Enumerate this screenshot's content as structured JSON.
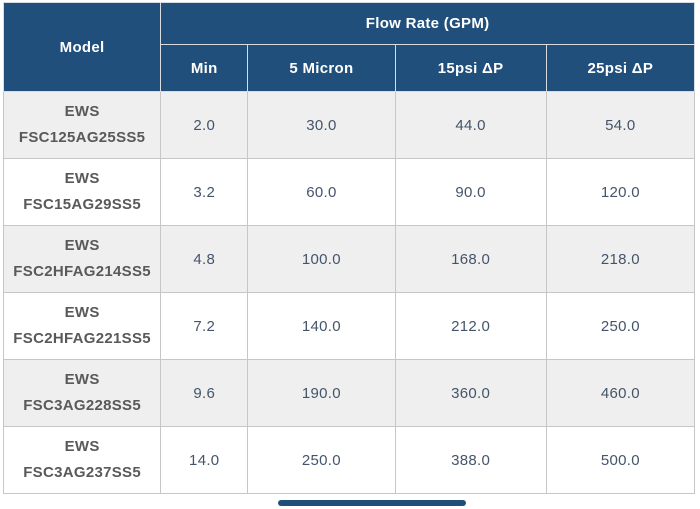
{
  "colors": {
    "header_bg": "#214f7c",
    "header_text": "#ffffff",
    "header_border": "#d8dce0",
    "outer_border": "#b5b5b5",
    "cell_border": "#c6c6c6",
    "row_alt_bg": "#efefef",
    "row_bg": "#ffffff",
    "model_text": "#595959",
    "value_text": "#44546a",
    "scrollbar": "#1f4e79"
  },
  "table": {
    "model_header": "Model",
    "group_header": "Flow Rate (GPM)",
    "sub_headers": [
      "Min",
      "5 Micron",
      "15psi ΔP",
      "25psi ΔP"
    ],
    "rows": [
      {
        "model_line1": "EWS",
        "model_line2": "FSC125AG25SS5",
        "values": [
          "2.0",
          "30.0",
          "44.0",
          "54.0"
        ]
      },
      {
        "model_line1": "EWS",
        "model_line2": "FSC15AG29SS5",
        "values": [
          "3.2",
          "60.0",
          "90.0",
          "120.0"
        ]
      },
      {
        "model_line1": "EWS",
        "model_line2": "FSC2HFAG214SS5",
        "values": [
          "4.8",
          "100.0",
          "168.0",
          "218.0"
        ]
      },
      {
        "model_line1": "EWS",
        "model_line2": "FSC2HFAG221SS5",
        "values": [
          "7.2",
          "140.0",
          "212.0",
          "250.0"
        ]
      },
      {
        "model_line1": "EWS",
        "model_line2": "FSC3AG228SS5",
        "values": [
          "9.6",
          "190.0",
          "360.0",
          "460.0"
        ]
      },
      {
        "model_line1": "EWS",
        "model_line2": "FSC3AG237SS5",
        "values": [
          "14.0",
          "250.0",
          "388.0",
          "500.0"
        ]
      }
    ]
  },
  "chart_data": {
    "type": "table",
    "title": "Flow Rate (GPM)",
    "columns": [
      "Model",
      "Min",
      "5 Micron",
      "15psi ΔP",
      "25psi ΔP"
    ],
    "rows": [
      [
        "EWS FSC125AG25SS5",
        2.0,
        30.0,
        44.0,
        54.0
      ],
      [
        "EWS FSC15AG29SS5",
        3.2,
        60.0,
        90.0,
        120.0
      ],
      [
        "EWS FSC2HFAG214SS5",
        4.8,
        100.0,
        168.0,
        218.0
      ],
      [
        "EWS FSC2HFAG221SS5",
        7.2,
        140.0,
        212.0,
        250.0
      ],
      [
        "EWS FSC3AG228SS5",
        9.6,
        190.0,
        360.0,
        460.0
      ],
      [
        "EWS FSC3AG237SS5",
        14.0,
        250.0,
        388.0,
        500.0
      ]
    ]
  }
}
